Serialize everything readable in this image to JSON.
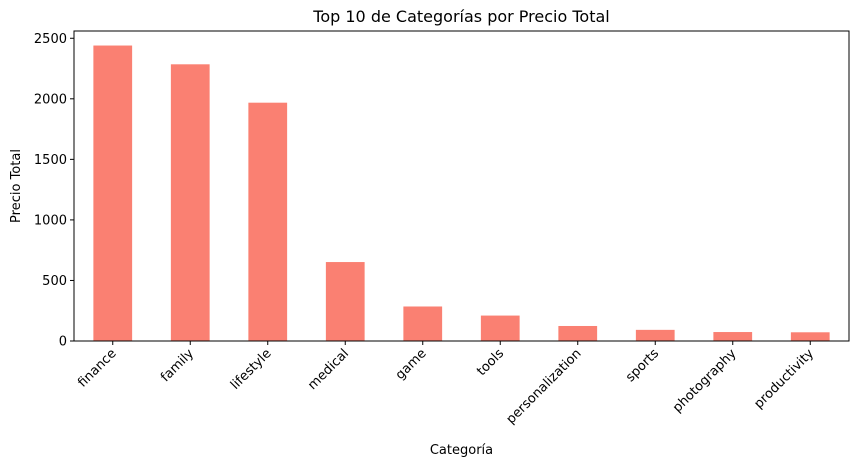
{
  "chart_data": {
    "type": "bar",
    "title": "Top 10 de Categorías por Precio Total",
    "xlabel": "Categoría",
    "ylabel": "Precio Total",
    "categories": [
      "finance",
      "family",
      "lifestyle",
      "medical",
      "game",
      "tools",
      "personalization",
      "sports",
      "photography",
      "productivity"
    ],
    "values": [
      2440,
      2285,
      1968,
      652,
      285,
      210,
      124,
      92,
      74,
      72
    ],
    "ylim": [
      0,
      2560
    ],
    "yticks": [
      0,
      500,
      1000,
      1500,
      2000,
      2500
    ],
    "ytick_labels": [
      "0",
      "500",
      "1000",
      "1500",
      "2000",
      "2500"
    ],
    "bar_color": "#fa8072",
    "grid": false,
    "legend": "none"
  }
}
